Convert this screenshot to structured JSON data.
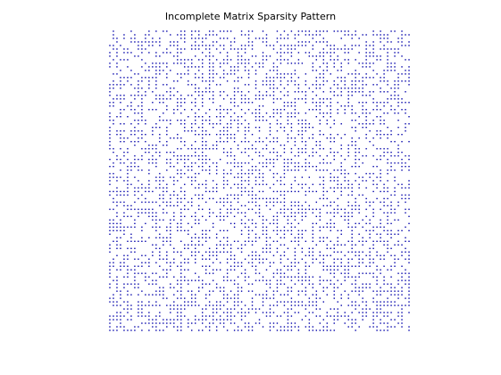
{
  "chart_data": {
    "type": "scatter",
    "title": "Incomplete Matrix Sparsity Pattern",
    "xlabel": "",
    "ylabel": "",
    "axes_visible": false,
    "grid": false,
    "legend": "none",
    "marker_color": "#0000aa",
    "matrix": {
      "rows": 85,
      "cols": 85,
      "fill_fraction": 0.5,
      "pattern": "uniformly random observed entries"
    }
  }
}
